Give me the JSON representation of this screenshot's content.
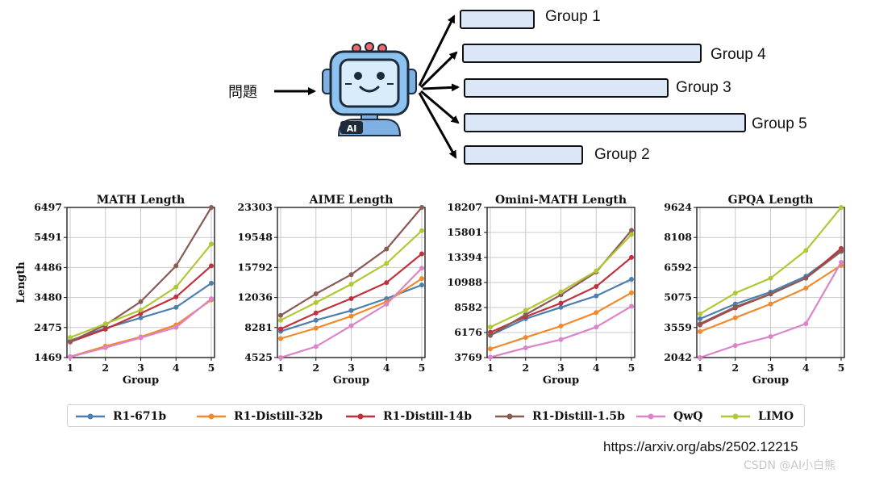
{
  "diagram": {
    "question": "問題",
    "robot_badge": "AI",
    "groups": [
      {
        "label": "Group 1"
      },
      {
        "label": "Group 4"
      },
      {
        "label": "Group 3"
      },
      {
        "label": "Group 5"
      },
      {
        "label": "Group 2"
      }
    ]
  },
  "chart_data": [
    {
      "type": "line",
      "title": "MATH Length",
      "xlabel": "Group",
      "ylabel": "Length",
      "categories": [
        1,
        2,
        3,
        4,
        5
      ],
      "yticks": [
        1469,
        2475,
        3480,
        4486,
        5491,
        6497
      ],
      "ylim": [
        1469,
        6497
      ],
      "grid": true,
      "series": [
        {
          "name": "R1-671b",
          "values": [
            2040,
            2450,
            2800,
            3150,
            3960
          ]
        },
        {
          "name": "R1-Distill-32b",
          "values": [
            1500,
            1850,
            2160,
            2560,
            3400
          ]
        },
        {
          "name": "R1-Distill-14b",
          "values": [
            1990,
            2420,
            2950,
            3500,
            4540
          ]
        },
        {
          "name": "R1-Distill-1.5b",
          "values": [
            2000,
            2560,
            3340,
            4540,
            6497
          ]
        },
        {
          "name": "QwQ",
          "values": [
            1490,
            1800,
            2130,
            2480,
            3440
          ]
        },
        {
          "name": "LIMO",
          "values": [
            2140,
            2600,
            3060,
            3830,
            5270
          ]
        }
      ]
    },
    {
      "type": "line",
      "title": "AIME Length",
      "xlabel": "Group",
      "categories": [
        1,
        2,
        3,
        4,
        5
      ],
      "yticks": [
        4525,
        8281,
        12036,
        15792,
        19548,
        23303
      ],
      "ylim": [
        4525,
        23303
      ],
      "grid": true,
      "series": [
        {
          "name": "R1-671b",
          "values": [
            7800,
            9200,
            10400,
            11900,
            13600
          ]
        },
        {
          "name": "R1-Distill-32b",
          "values": [
            6900,
            8200,
            9700,
            11500,
            14400
          ]
        },
        {
          "name": "R1-Distill-14b",
          "values": [
            8100,
            10100,
            11900,
            13900,
            17500
          ]
        },
        {
          "name": "R1-Distill-1.5b",
          "values": [
            9800,
            12500,
            14900,
            18100,
            23303
          ]
        },
        {
          "name": "QwQ",
          "values": [
            4525,
            5900,
            8500,
            11200,
            15700
          ]
        },
        {
          "name": "LIMO",
          "values": [
            9200,
            11400,
            13700,
            16300,
            20400
          ]
        }
      ]
    },
    {
      "type": "line",
      "title": "Omini-MATH Length",
      "xlabel": "Group",
      "categories": [
        1,
        2,
        3,
        4,
        5
      ],
      "yticks": [
        3769,
        6176,
        8582,
        10988,
        13394,
        15801,
        18207
      ],
      "ylim": [
        3769,
        18207
      ],
      "grid": true,
      "series": [
        {
          "name": "R1-671b",
          "values": [
            5900,
            7500,
            8600,
            9700,
            11300
          ]
        },
        {
          "name": "R1-Distill-32b",
          "values": [
            4600,
            5700,
            6800,
            8100,
            10000
          ]
        },
        {
          "name": "R1-Distill-14b",
          "values": [
            6200,
            7700,
            9000,
            10600,
            13400
          ]
        },
        {
          "name": "R1-Distill-1.5b",
          "values": [
            5900,
            7900,
            9800,
            12000,
            16000
          ]
        },
        {
          "name": "QwQ",
          "values": [
            3800,
            4700,
            5500,
            6700,
            8700
          ]
        },
        {
          "name": "LIMO",
          "values": [
            6700,
            8300,
            10100,
            12100,
            15600
          ]
        }
      ]
    },
    {
      "type": "line",
      "title": "GPQA Length",
      "xlabel": "Group",
      "categories": [
        1,
        2,
        3,
        4,
        5
      ],
      "yticks": [
        2042,
        3559,
        5075,
        6592,
        8108,
        9624
      ],
      "ylim": [
        2042,
        9624
      ],
      "grid": true,
      "series": [
        {
          "name": "R1-671b",
          "values": [
            4000,
            4750,
            5350,
            6150,
            7450
          ]
        },
        {
          "name": "R1-Distill-32b",
          "values": [
            3350,
            4050,
            4750,
            5550,
            6700
          ]
        },
        {
          "name": "R1-Distill-14b",
          "values": [
            3700,
            4550,
            5250,
            6050,
            7550
          ]
        },
        {
          "name": "R1-Distill-1.5b",
          "values": [
            3750,
            4600,
            5250,
            6050,
            7400
          ]
        },
        {
          "name": "QwQ",
          "values": [
            2042,
            2650,
            3100,
            3750,
            6850
          ]
        },
        {
          "name": "LIMO",
          "values": [
            4250,
            5300,
            6050,
            7450,
            9624
          ]
        }
      ]
    }
  ],
  "legend": {
    "entries": [
      {
        "name": "R1-671b",
        "color": "#4c7fb0"
      },
      {
        "name": "R1-Distill-32b",
        "color": "#ef8a2d"
      },
      {
        "name": "R1-Distill-14b",
        "color": "#c2313b"
      },
      {
        "name": "R1-Distill-1.5b",
        "color": "#8a5b55"
      },
      {
        "name": "QwQ",
        "color": "#dd84c9"
      },
      {
        "name": "LIMO",
        "color": "#b3c633"
      }
    ]
  },
  "source_url": "https://arxiv.org/abs/2502.12215",
  "watermark": "CSDN @AI小白熊"
}
